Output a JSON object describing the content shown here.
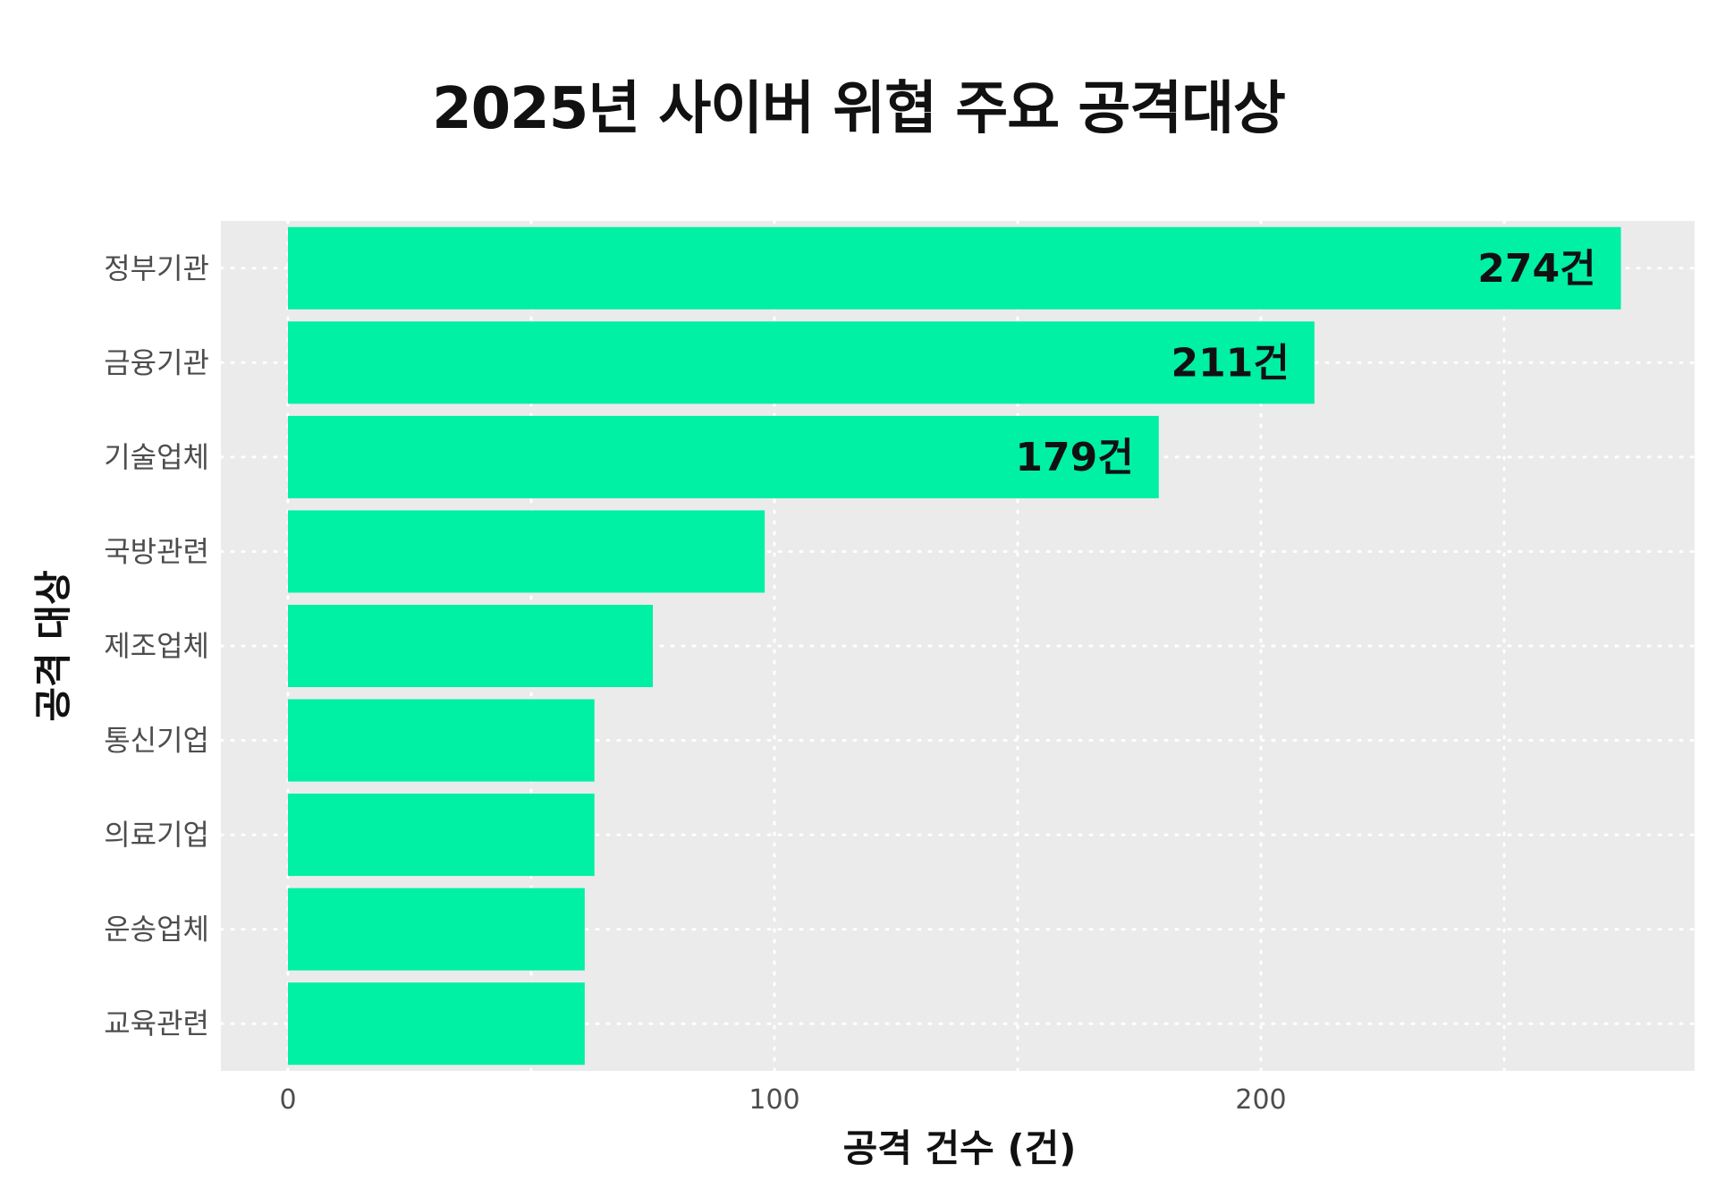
{
  "chart_data": {
    "type": "bar",
    "orientation": "horizontal",
    "title": "2025년 사이버 위협 주요 공격대상",
    "xlabel": "공격 건수 (건)",
    "ylabel": "공격 대상",
    "categories": [
      "정부기관",
      "금융기관",
      "기술업체",
      "국방관련",
      "제조업체",
      "통신기업",
      "의료기업",
      "운송업체",
      "교육관련"
    ],
    "values": [
      274,
      211,
      179,
      98,
      75,
      63,
      63,
      61,
      61
    ],
    "data_labels": [
      "274건",
      "211건",
      "179건",
      "",
      "",
      "",
      "",
      "",
      ""
    ],
    "xticks": [
      0,
      100,
      200
    ],
    "xlim": [
      -13.5,
      288
    ],
    "grid": "dotted",
    "colors": {
      "bar": "#00F0A4",
      "panel": "#EBEBEB",
      "grid": "#FFFFFF"
    }
  }
}
